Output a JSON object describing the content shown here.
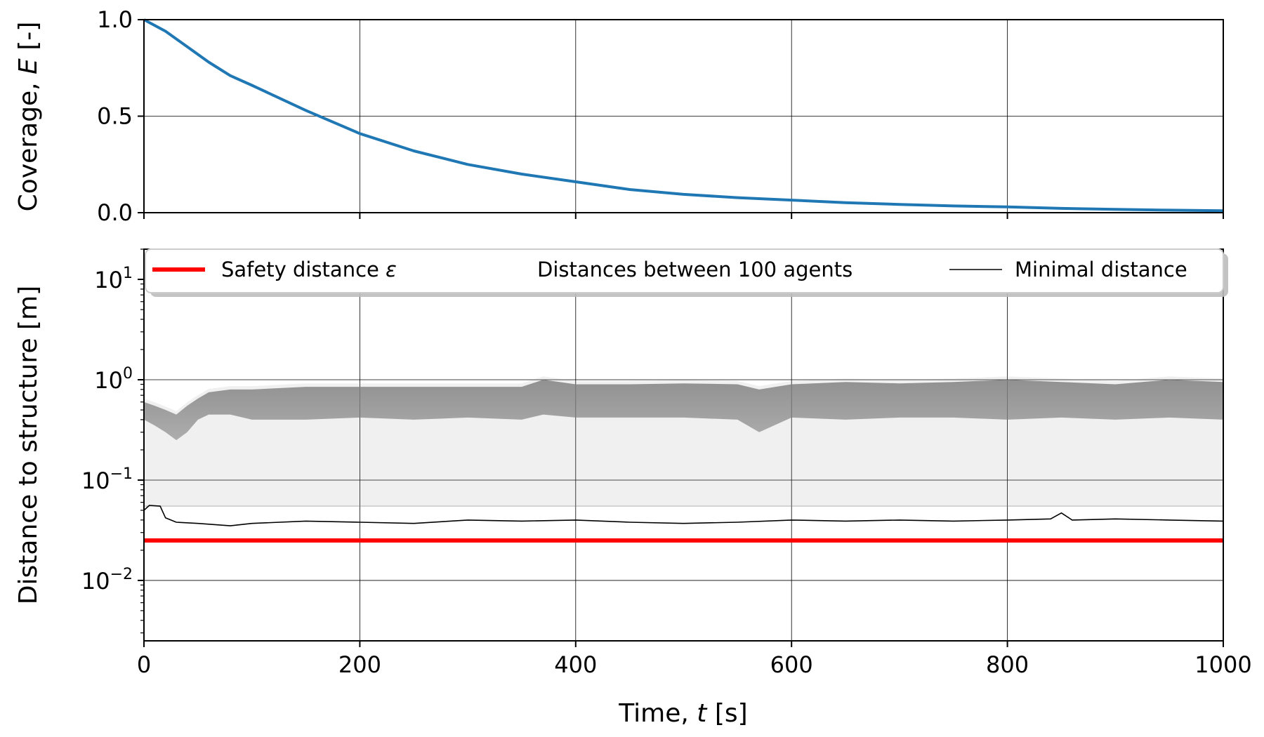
{
  "chart_data": [
    {
      "type": "line",
      "ylabel": "Coverage, E [-]",
      "ylabel_parts": [
        "Coverage, ",
        "E",
        " [-]"
      ],
      "xlim": [
        0,
        1000
      ],
      "ylim": [
        0,
        1
      ],
      "xticks": [
        0,
        200,
        400,
        600,
        800,
        1000
      ],
      "yticks": [
        0.0,
        0.5,
        1.0
      ],
      "ytick_labels": [
        "0.0",
        "0.5",
        "1.0"
      ],
      "grid": true,
      "color": "#1f77b4",
      "series": [
        {
          "x": [
            0,
            20,
            40,
            60,
            80,
            100,
            150,
            200,
            250,
            300,
            350,
            400,
            450,
            500,
            550,
            600,
            650,
            700,
            750,
            800,
            850,
            900,
            950,
            1000
          ],
          "values": [
            1.0,
            0.94,
            0.86,
            0.78,
            0.71,
            0.66,
            0.53,
            0.41,
            0.32,
            0.25,
            0.2,
            0.16,
            0.12,
            0.095,
            0.078,
            0.065,
            0.052,
            0.043,
            0.035,
            0.03,
            0.022,
            0.017,
            0.013,
            0.01
          ]
        }
      ]
    },
    {
      "type": "line",
      "yscale": "log",
      "ylabel": "Distance to structure [m]",
      "xlabel": "Time, t [s]",
      "xlabel_parts": [
        "Time, ",
        "t",
        " [s]"
      ],
      "xlim": [
        0,
        1000
      ],
      "ylim": [
        0.0025,
        20
      ],
      "xticks": [
        0,
        200,
        400,
        600,
        800,
        1000
      ],
      "xtick_labels": [
        "0",
        "200",
        "400",
        "600",
        "800",
        "1000"
      ],
      "yticks": [
        0.01,
        0.1,
        1,
        10
      ],
      "ytick_exponents": [
        "−2",
        "−1",
        "0",
        "1"
      ],
      "grid": true,
      "legend_position": "top",
      "series": [
        {
          "name": "Safety distance ε",
          "name_parts": [
            "Safety distance ",
            "ε"
          ],
          "color": "#ff0000",
          "x": [
            0,
            1000
          ],
          "values": [
            0.025,
            0.025
          ]
        },
        {
          "name": "Distances between 100 agents",
          "color": "#808080",
          "band_x": [
            0,
            10,
            20,
            30,
            40,
            50,
            60,
            80,
            100,
            150,
            200,
            250,
            300,
            350,
            370,
            400,
            450,
            500,
            550,
            570,
            600,
            650,
            700,
            750,
            800,
            850,
            900,
            950,
            1000
          ],
          "band_upper": [
            0.6,
            0.55,
            0.5,
            0.45,
            0.55,
            0.65,
            0.75,
            0.8,
            0.8,
            0.85,
            0.85,
            0.85,
            0.85,
            0.85,
            1.0,
            0.9,
            0.9,
            0.92,
            0.9,
            0.8,
            0.9,
            0.95,
            0.92,
            0.95,
            1.0,
            0.95,
            0.9,
            1.0,
            0.95
          ],
          "band_lower": [
            0.4,
            0.35,
            0.3,
            0.25,
            0.3,
            0.4,
            0.45,
            0.45,
            0.4,
            0.4,
            0.42,
            0.4,
            0.42,
            0.4,
            0.45,
            0.42,
            0.42,
            0.42,
            0.4,
            0.3,
            0.42,
            0.4,
            0.42,
            0.42,
            0.4,
            0.42,
            0.4,
            0.42,
            0.4
          ],
          "min": 0.055
        },
        {
          "name": "Minimal distance",
          "color": "#000000",
          "x": [
            0,
            5,
            15,
            20,
            30,
            50,
            80,
            100,
            150,
            200,
            250,
            300,
            350,
            400,
            450,
            500,
            550,
            600,
            650,
            700,
            750,
            800,
            840,
            850,
            860,
            900,
            950,
            1000
          ],
          "values": [
            0.05,
            0.056,
            0.055,
            0.042,
            0.038,
            0.037,
            0.035,
            0.037,
            0.039,
            0.038,
            0.037,
            0.04,
            0.039,
            0.04,
            0.038,
            0.037,
            0.038,
            0.04,
            0.039,
            0.04,
            0.039,
            0.04,
            0.041,
            0.047,
            0.04,
            0.041,
            0.04,
            0.039
          ]
        }
      ]
    }
  ]
}
